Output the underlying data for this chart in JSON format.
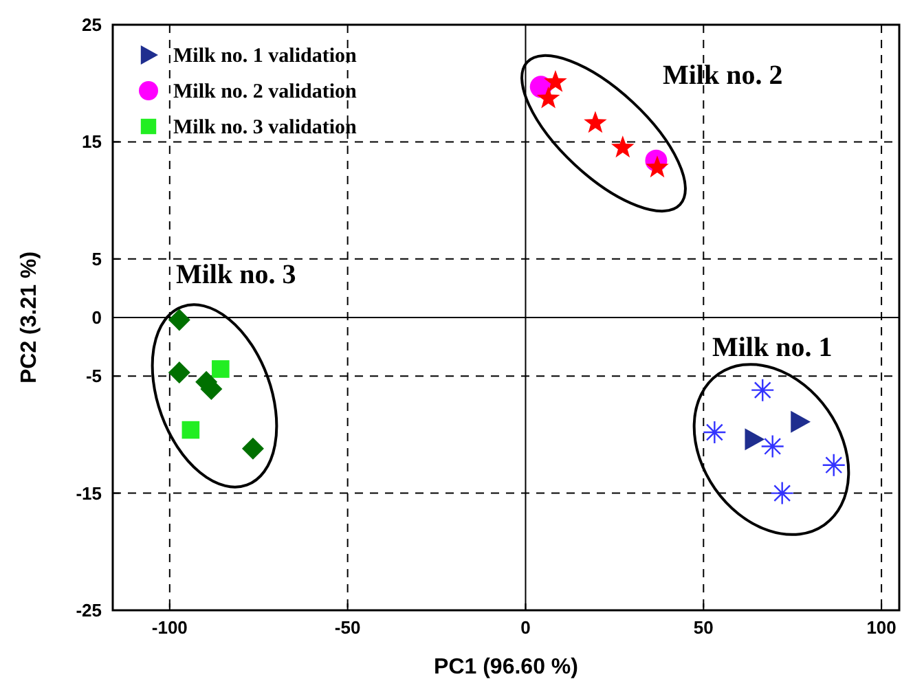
{
  "chart_data": {
    "type": "scatter",
    "xlabel": "PC1 (96.60 %)",
    "ylabel": "PC2 (3.21 %)",
    "xlim": [
      -116,
      105
    ],
    "xticks": [
      -100,
      -50,
      0,
      50,
      100
    ],
    "ylim": [
      -25,
      25
    ],
    "yticks": [
      -25,
      -15,
      -5,
      0,
      5,
      15,
      25
    ],
    "grid": true,
    "legend": "top left",
    "annotations": [
      "Milk no. 1",
      "Milk no. 2",
      "Milk no. 3"
    ],
    "series": [
      {
        "name": "Milk no. 1 validation",
        "color": "#1f2e8f",
        "marker": "triangle",
        "x": [
          77,
          64.1
        ],
        "values": [
          -8.9,
          -10.4
        ]
      },
      {
        "name": "Milk no. 2 validation",
        "color": "#ff00ff",
        "marker": "circle",
        "x": [
          4.3,
          36.7
        ],
        "values": [
          19.7,
          13.4
        ]
      },
      {
        "name": "Milk no. 3 validation",
        "color": "#22ee22",
        "marker": "square",
        "x": [
          -85.7,
          -94.1
        ],
        "values": [
          -4.4,
          -9.6
        ]
      },
      {
        "color": "#3333ff",
        "marker": "cross",
        "x": [
          66.6,
          53.1,
          69.4,
          86.6,
          72.1
        ],
        "values": [
          -6.2,
          -9.8,
          -11.0,
          -12.6,
          -15.0
        ]
      },
      {
        "color": "#ff0000",
        "marker": "star",
        "x": [
          8.4,
          6.4,
          19.6,
          27.3,
          37
        ],
        "values": [
          20.1,
          18.7,
          16.6,
          14.5,
          12.8
        ]
      },
      {
        "color": "#007000",
        "marker": "diamond",
        "x": [
          -97.3,
          -97.3,
          -89.7,
          -88.3,
          -76.6
        ],
        "values": [
          -0.2,
          -4.7,
          -5.5,
          -6.1,
          -11.2
        ]
      }
    ]
  }
}
